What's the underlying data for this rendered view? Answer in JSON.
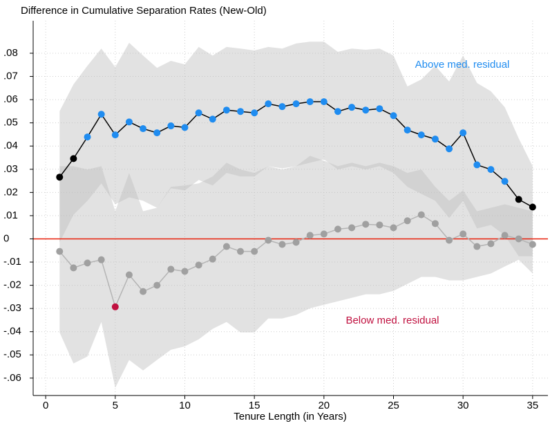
{
  "chart_data": {
    "type": "line",
    "title": "Difference in Cumulative Separation Rates (New-Old)",
    "x_label": "Tenure Length (in Years)",
    "x": [
      1,
      2,
      3,
      4,
      5,
      6,
      7,
      8,
      9,
      10,
      11,
      12,
      13,
      14,
      15,
      16,
      17,
      18,
      19,
      20,
      21,
      22,
      23,
      24,
      25,
      26,
      27,
      28,
      29,
      30,
      31,
      32,
      33,
      34,
      35
    ],
    "series": [
      {
        "name": "Above med. residual",
        "color": "#000000",
        "band_color": "rgba(190,190,190,0.45)",
        "values": [
          0.0266,
          0.0346,
          0.0439,
          0.0537,
          0.0448,
          0.0504,
          0.0475,
          0.0457,
          0.0487,
          0.048,
          0.0543,
          0.0516,
          0.0555,
          0.0549,
          0.0543,
          0.0582,
          0.057,
          0.0582,
          0.0591,
          0.0591,
          0.0549,
          0.0567,
          0.0555,
          0.0561,
          0.0531,
          0.0469,
          0.0448,
          0.043,
          0.0388,
          0.0457,
          0.0319,
          0.0299,
          0.0248,
          0.017,
          0.0137
        ],
        "marker_colors": [
          "#000000",
          "#000000",
          "#1f8cf0",
          "#1f8cf0",
          "#1f8cf0",
          "#1f8cf0",
          "#1f8cf0",
          "#1f8cf0",
          "#1f8cf0",
          "#1f8cf0",
          "#1f8cf0",
          "#1f8cf0",
          "#1f8cf0",
          "#1f8cf0",
          "#1f8cf0",
          "#1f8cf0",
          "#1f8cf0",
          "#1f8cf0",
          "#1f8cf0",
          "#1f8cf0",
          "#1f8cf0",
          "#1f8cf0",
          "#1f8cf0",
          "#1f8cf0",
          "#1f8cf0",
          "#1f8cf0",
          "#1f8cf0",
          "#1f8cf0",
          "#1f8cf0",
          "#1f8cf0",
          "#1f8cf0",
          "#1f8cf0",
          "#1f8cf0",
          "#000000",
          "#000000"
        ],
        "upper": [
          0.055,
          0.0666,
          0.0746,
          0.082,
          0.074,
          0.0845,
          0.079,
          0.0737,
          0.0767,
          0.0752,
          0.0827,
          0.079,
          0.0827,
          0.082,
          0.0812,
          0.0827,
          0.082,
          0.0842,
          0.085,
          0.085,
          0.0806,
          0.082,
          0.0815,
          0.082,
          0.079,
          0.0657,
          0.0687,
          0.0746,
          0.0678,
          0.079,
          0.0672,
          0.0636,
          0.0567,
          0.0433,
          0.0313
        ],
        "lower": [
          -0.0015,
          0.0104,
          0.0164,
          0.0239,
          0.0149,
          0.0179,
          0.0164,
          0.0134,
          0.0218,
          0.0209,
          0.0254,
          0.023,
          0.0284,
          0.0269,
          0.0269,
          0.0313,
          0.0304,
          0.0313,
          0.0328,
          0.0343,
          0.0299,
          0.0313,
          0.0299,
          0.0313,
          0.0284,
          0.0224,
          0.0194,
          0.0164,
          0.009,
          0.0164,
          0.0045,
          0.006,
          0.0015,
          -0.0075,
          -0.0075
        ],
        "label_color": "#1f8cf0"
      },
      {
        "name": "Below med. residual",
        "color": "#b4b4b4",
        "band_color": "rgba(190,190,190,0.45)",
        "values": [
          -0.0054,
          -0.0125,
          -0.0104,
          -0.009,
          -0.0293,
          -0.0155,
          -0.0227,
          -0.02,
          -0.0131,
          -0.014,
          -0.0113,
          -0.0087,
          -0.0033,
          -0.0054,
          -0.0054,
          -0.0006,
          -0.0024,
          -0.0015,
          0.0015,
          0.0021,
          0.0042,
          0.0048,
          0.0063,
          0.006,
          0.0048,
          0.0078,
          0.0104,
          0.0066,
          -0.0006,
          0.0021,
          -0.0033,
          -0.0021,
          0.0015,
          0,
          -0.0024
        ],
        "marker_colors": [
          "#a0a0a0",
          "#a0a0a0",
          "#a0a0a0",
          "#a0a0a0",
          "#c0103f",
          "#a0a0a0",
          "#a0a0a0",
          "#a0a0a0",
          "#a0a0a0",
          "#a0a0a0",
          "#a0a0a0",
          "#a0a0a0",
          "#a0a0a0",
          "#a0a0a0",
          "#a0a0a0",
          "#a0a0a0",
          "#a0a0a0",
          "#a0a0a0",
          "#a0a0a0",
          "#a0a0a0",
          "#a0a0a0",
          "#a0a0a0",
          "#a0a0a0",
          "#a0a0a0",
          "#a0a0a0",
          "#a0a0a0",
          "#a0a0a0",
          "#a0a0a0",
          "#a0a0a0",
          "#a0a0a0",
          "#a0a0a0",
          "#a0a0a0",
          "#a0a0a0",
          "#a0a0a0",
          "#a0a0a0"
        ],
        "upper": [
          0.0313,
          0.0313,
          0.0299,
          0.0313,
          0.0119,
          0.0284,
          0.0119,
          0.0134,
          0.0224,
          0.023,
          0.0239,
          0.0269,
          0.0328,
          0.0299,
          0.0284,
          0.0313,
          0.0299,
          0.0313,
          0.0358,
          0.0337,
          0.0313,
          0.0328,
          0.0313,
          0.0328,
          0.0313,
          0.0284,
          0.0299,
          0.0224,
          0.0164,
          0.0209,
          0.0119,
          0.0134,
          0.0149,
          0.0134,
          0.0119
        ],
        "lower": [
          -0.0403,
          -0.0537,
          -0.0507,
          -0.0358,
          -0.0642,
          -0.0522,
          -0.0567,
          -0.0522,
          -0.0478,
          -0.0463,
          -0.0433,
          -0.0388,
          -0.0358,
          -0.0403,
          -0.0403,
          -0.0343,
          -0.0343,
          -0.0328,
          -0.0299,
          -0.0284,
          -0.0269,
          -0.0254,
          -0.0239,
          -0.0239,
          -0.0224,
          -0.0194,
          -0.0164,
          -0.0164,
          -0.0179,
          -0.0179,
          -0.0164,
          -0.0149,
          -0.0119,
          -0.009,
          -0.0149
        ],
        "label_color": "#c0103f"
      }
    ],
    "hline": 0,
    "hline_color": "#e8200c",
    "xlim": [
      -0.9,
      36.1
    ],
    "xticks": [
      0,
      5,
      10,
      15,
      20,
      25,
      30,
      35
    ],
    "ylim": [
      -0.0675,
      0.094
    ],
    "yticks": [
      {
        "value": 0.08,
        "label": ".08"
      },
      {
        "value": 0.07,
        "label": ".07"
      },
      {
        "value": 0.06,
        "label": ".06"
      },
      {
        "value": 0.05,
        "label": ".05"
      },
      {
        "value": 0.04,
        "label": ".04"
      },
      {
        "value": 0.03,
        "label": ".03"
      },
      {
        "value": 0.02,
        "label": ".02"
      },
      {
        "value": 0.01,
        "label": ".01"
      },
      0,
      {
        "value": -0.01,
        "label": "-.01"
      },
      {
        "value": -0.02,
        "label": "-.02"
      },
      {
        "value": -0.03,
        "label": "-.03"
      },
      {
        "value": -0.04,
        "label": "-.04"
      },
      {
        "value": -0.05,
        "label": "-.05"
      },
      {
        "value": -0.06,
        "label": "-.06"
      }
    ],
    "grid": true
  }
}
